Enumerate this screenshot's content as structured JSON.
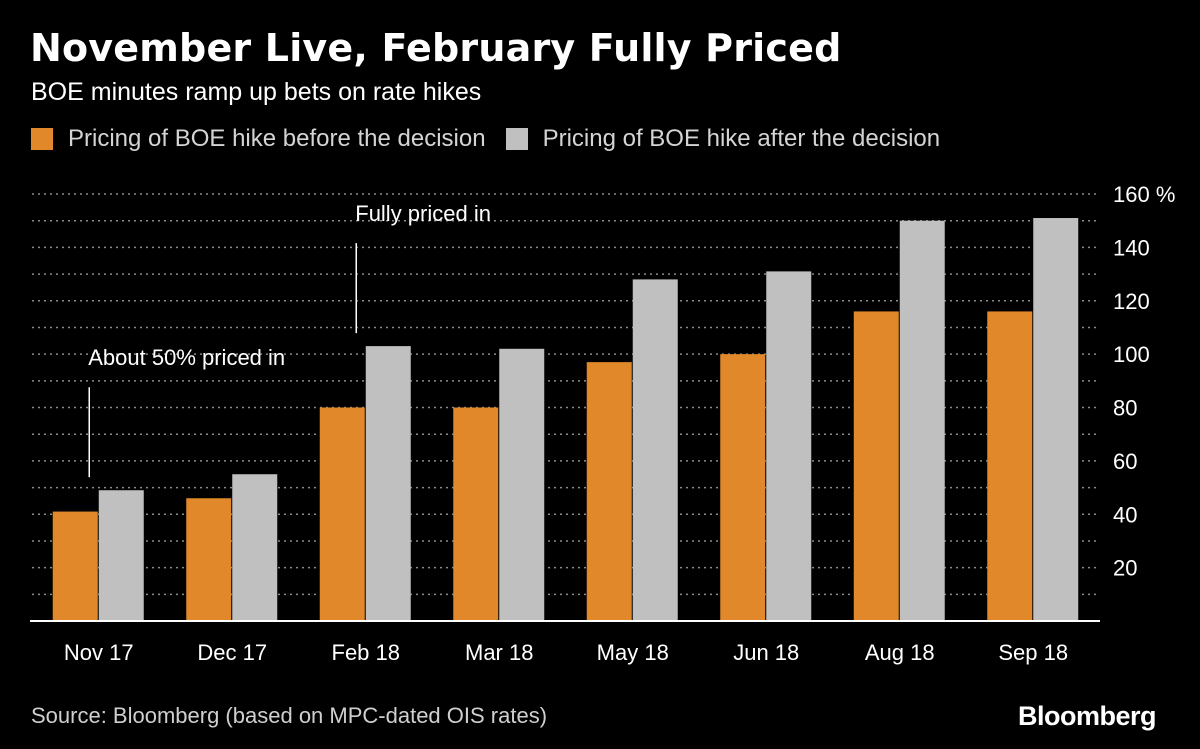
{
  "title": "November Live, February Fully Priced",
  "subtitle": "BOE minutes ramp up bets on rate hikes",
  "source": "Source: Bloomberg (based on MPC-dated OIS rates)",
  "brand": "Bloomberg",
  "colors": {
    "before": "#e0882a",
    "after": "#c0c0c0",
    "grid": "#8a8a8a"
  },
  "chart_data": {
    "type": "bar",
    "categories": [
      "Nov 17",
      "Dec 17",
      "Feb 18",
      "Mar 18",
      "May 18",
      "Jun 18",
      "Aug 18",
      "Sep 18"
    ],
    "series": [
      {
        "name": "Pricing of BOE hike before the decision",
        "values": [
          41,
          46,
          80,
          80,
          97,
          100,
          116,
          116
        ]
      },
      {
        "name": "Pricing of BOE hike after the decision",
        "values": [
          49,
          55,
          103,
          102,
          128,
          131,
          150,
          151
        ]
      }
    ],
    "y_ticks": [
      "20",
      "40",
      "60",
      "80",
      "100",
      "120",
      "140",
      "160 %"
    ],
    "ylim": [
      0,
      160
    ],
    "grid": true,
    "legend_position": "top-left",
    "annotations": [
      {
        "text": "About 50% priced in",
        "category": "Nov 17",
        "series": 1
      },
      {
        "text": "Fully priced in",
        "category": "Feb 18",
        "series": 1
      }
    ]
  }
}
